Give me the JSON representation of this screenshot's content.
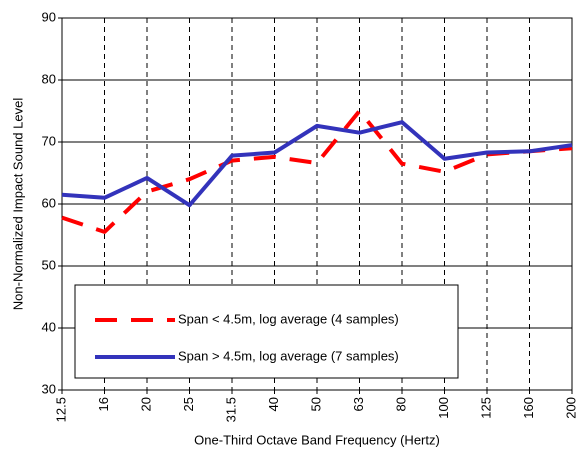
{
  "chart_data": {
    "type": "line",
    "x_label": "One-Third Octave Band Frequency (Hertz)",
    "y_label": "Non-Normalized Impact Sound Level",
    "categories": [
      "12.5",
      "16",
      "20",
      "25",
      "31.5",
      "40",
      "50",
      "63",
      "80",
      "100",
      "125",
      "160",
      "200"
    ],
    "series": [
      {
        "name": "Span < 4.5m, log average (4 samples)",
        "color": "#ff0000",
        "line_style": "dashed",
        "values": [
          57.8,
          55.5,
          62,
          64,
          67,
          67.6,
          66.6,
          75,
          66.5,
          65.2,
          68,
          68.5,
          69
        ]
      },
      {
        "name": "Span > 4.5m, log average (7 samples)",
        "color": "#3333bb",
        "line_style": "solid",
        "values": [
          61.5,
          61,
          64.2,
          59.8,
          67.8,
          68.3,
          72.6,
          71.5,
          73.2,
          67.3,
          68.3,
          68.5,
          69.5
        ]
      }
    ],
    "ylim": [
      30,
      90
    ],
    "yticks": [
      30,
      40,
      50,
      60,
      70,
      80,
      90
    ],
    "grid": true,
    "legend": "lower-left"
  }
}
